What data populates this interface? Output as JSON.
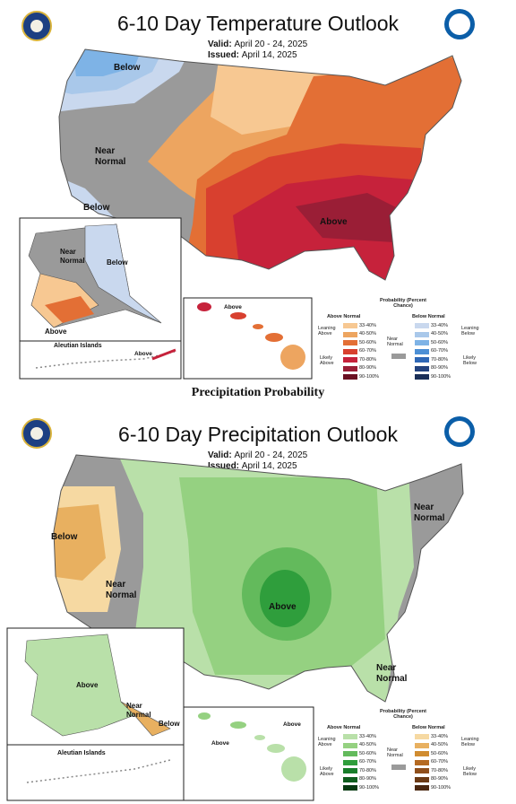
{
  "colors": {
    "above": [
      "#f7c892",
      "#eda560",
      "#e36f35",
      "#d8402f",
      "#c6223b",
      "#9a1e36",
      "#6b1022"
    ],
    "below": [
      "#c9d8ee",
      "#a9c8ea",
      "#7eb3e6",
      "#4c8fd5",
      "#2e67b6",
      "#23437f",
      "#1a2f58"
    ],
    "wet": [
      "#b9e0a9",
      "#95d181",
      "#63ba5c",
      "#2f9e3c",
      "#187e2a",
      "#0f5e1e",
      "#073a11"
    ],
    "dry": [
      "#f6d9a2",
      "#e8b060",
      "#d08c30",
      "#b56a22",
      "#8f4f1c",
      "#6b3a15",
      "#4b2710"
    ],
    "normal": "#9a9a9a"
  },
  "temp": {
    "title": "6-10 Day Temperature Outlook",
    "valid_label": "Valid:",
    "valid": "April 20 - 24, 2025",
    "issued_label": "Issued:",
    "issued": "April 14, 2025",
    "labels": {
      "below_nw": "Below",
      "near_normal": "Near Normal",
      "below_sw": "Below",
      "above_se": "Above"
    },
    "alaska": {
      "near_normal": "Near Normal",
      "below": "Below",
      "above": "Above",
      "aleutian": "Aleutian Islands",
      "aleutian_above": "Above"
    },
    "hawaii": {
      "above": "Above"
    },
    "legend": {
      "title": "Probability (Percent Chance)",
      "left_head": "Above Normal",
      "right_head": "Below Normal",
      "near": "Near Normal",
      "leaning_l": "Leaning Above",
      "likely_l": "Likely Above",
      "leaning_r": "Leaning Below",
      "likely_r": "Likely Below",
      "bins": [
        "33-40%",
        "40-50%",
        "50-60%",
        "60-70%",
        "70-80%",
        "80-90%",
        "90-100%"
      ]
    }
  },
  "separator": "Precipitation Probability",
  "precip": {
    "title": "6-10 Day Precipitation Outlook",
    "valid_label": "Valid:",
    "valid": "April 20 - 24, 2025",
    "issued_label": "Issued:",
    "issued": "April 14, 2025",
    "labels": {
      "below_w": "Below",
      "near_normal_w": "Near Normal",
      "above_c": "Above",
      "near_normal_ne": "Near Normal",
      "near_normal_se": "Near Normal"
    },
    "alaska": {
      "above": "Above",
      "near_normal": "Near Normal",
      "below": "Below",
      "aleutian": "Aleutian Islands"
    },
    "hawaii": {
      "above_left": "Above",
      "above_right": "Above"
    },
    "legend": {
      "title": "Probability (Percent Chance)",
      "left_head": "Above Normal",
      "right_head": "Below Normal",
      "near": "Near Normal",
      "leaning_l": "Leaning Above",
      "likely_l": "Likely Above",
      "leaning_r": "Leaning Below",
      "likely_r": "Likely Below",
      "bins": [
        "33-40%",
        "40-50%",
        "50-60%",
        "60-70%",
        "70-80%",
        "80-90%",
        "90-100%"
      ]
    }
  }
}
